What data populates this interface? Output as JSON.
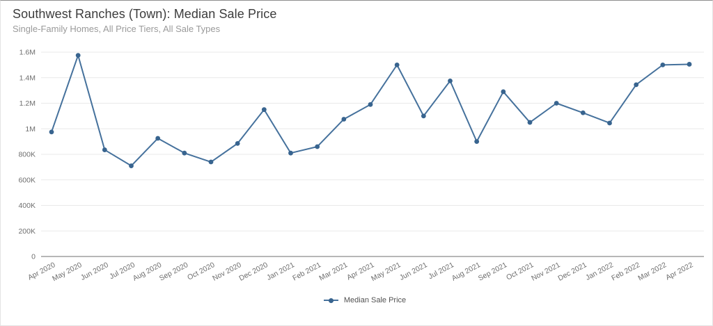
{
  "header": {
    "title": "Southwest Ranches (Town): Median Sale Price",
    "subtitle": "Single-Family Homes, All Price Tiers, All Sale Types"
  },
  "legend": {
    "items": [
      {
        "label": "Median Sale Price"
      }
    ]
  },
  "colors": {
    "line": "#45719c",
    "dot": "#38648f",
    "grid": "#e9e9e9",
    "axis": "#6f6f6f",
    "tick_text": "#6e6e6e",
    "title_text": "#3c3c3c",
    "subtitle_text": "#9a9a9a",
    "legend_text": "#515151"
  },
  "chart_data": {
    "type": "line",
    "title": "Southwest Ranches (Town): Median Sale Price",
    "subtitle": "Single-Family Homes, All Price Tiers, All Sale Types",
    "xlabel": "",
    "ylabel": "",
    "categories": [
      "Apr 2020",
      "May 2020",
      "Jun 2020",
      "Jul 2020",
      "Aug 2020",
      "Sep 2020",
      "Oct 2020",
      "Nov 2020",
      "Dec 2020",
      "Jan 2021",
      "Feb 2021",
      "Mar 2021",
      "Apr 2021",
      "May 2021",
      "Jun 2021",
      "Jul 2021",
      "Aug 2021",
      "Sep 2021",
      "Oct 2021",
      "Nov 2021",
      "Dec 2021",
      "Jan 2022",
      "Feb 2022",
      "Mar 2022",
      "Apr 2022"
    ],
    "series": [
      {
        "name": "Median Sale Price",
        "values": [
          975000,
          1575000,
          835000,
          710000,
          925000,
          810000,
          740000,
          885000,
          1150000,
          810000,
          860000,
          1075000,
          1190000,
          1500000,
          1100000,
          1375000,
          900000,
          1290000,
          1050000,
          1200000,
          1125000,
          1045000,
          1345000,
          1500000,
          1505000
        ]
      }
    ],
    "ylim": [
      0,
      1600000
    ],
    "y_ticks": [
      {
        "value": 0,
        "label": "0"
      },
      {
        "value": 200000,
        "label": "200K"
      },
      {
        "value": 400000,
        "label": "400K"
      },
      {
        "value": 600000,
        "label": "600K"
      },
      {
        "value": 800000,
        "label": "800K"
      },
      {
        "value": 1000000,
        "label": "1M"
      },
      {
        "value": 1200000,
        "label": "1.2M"
      },
      {
        "value": 1400000,
        "label": "1.4M"
      },
      {
        "value": 1600000,
        "label": "1.6M"
      }
    ],
    "grid": "horizontal-only",
    "legend_position": "bottom-center",
    "marker": "circle"
  }
}
